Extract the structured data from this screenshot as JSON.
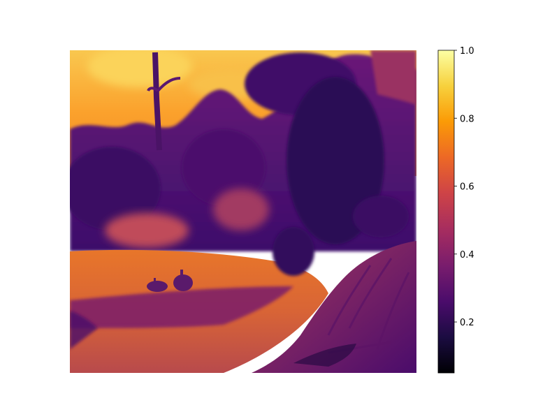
{
  "figure": {
    "image_description_kind": "pseudocolor rendering of a photograph",
    "colormap": {
      "name": "inferno",
      "stops": [
        "#000004",
        "#1b0c41",
        "#4a0c6b",
        "#781c6d",
        "#a52c60",
        "#cf4446",
        "#ed6925",
        "#fb9b06",
        "#f7d13d",
        "#fcffa4"
      ]
    },
    "colorbar": {
      "min": 0.05,
      "max": 1.0,
      "ticks": [
        {
          "value": 0.2,
          "label": "0.2"
        },
        {
          "value": 0.4,
          "label": "0.4"
        },
        {
          "value": 0.6,
          "label": "0.6"
        },
        {
          "value": 0.8,
          "label": "0.8"
        },
        {
          "value": 1.0,
          "label": "1.0"
        }
      ]
    }
  }
}
